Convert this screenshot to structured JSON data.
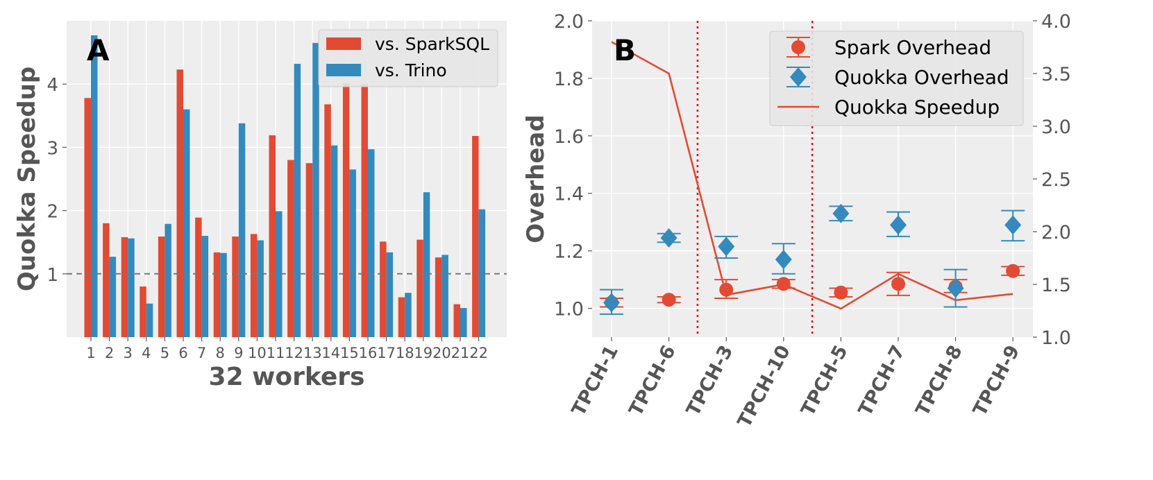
{
  "chart_data": [
    {
      "type": "bar",
      "panel_label": "A",
      "xlabel": "32 workers",
      "ylabel": "Quokka Speedup",
      "categories": [
        "1",
        "2",
        "3",
        "4",
        "5",
        "6",
        "7",
        "8",
        "9",
        "10",
        "11",
        "12",
        "13",
        "14",
        "15",
        "16",
        "17",
        "18",
        "19",
        "20",
        "21",
        "22"
      ],
      "series": [
        {
          "name": "vs. SparkSQL",
          "color": "#E24A33",
          "values": [
            3.78,
            1.8,
            1.58,
            0.8,
            1.59,
            4.23,
            1.89,
            1.34,
            1.59,
            1.63,
            3.19,
            2.8,
            2.75,
            3.68,
            4.01,
            4.0,
            1.51,
            0.63,
            1.54,
            1.26,
            0.52,
            3.18
          ]
        },
        {
          "name": "vs. Trino",
          "color": "#348ABD",
          "values": [
            4.77,
            1.27,
            1.56,
            0.53,
            1.79,
            3.6,
            1.6,
            1.33,
            3.38,
            1.53,
            1.99,
            4.32,
            4.65,
            3.03,
            2.65,
            2.97,
            1.34,
            0.7,
            2.29,
            1.3,
            0.46,
            2.02
          ]
        }
      ],
      "ylim": [
        0,
        5.0
      ],
      "yticks": [
        "1",
        "2",
        "3",
        "4"
      ],
      "reference_line": 1.0,
      "legend": "top-right",
      "grid": true
    },
    {
      "type": "scatter",
      "panel_label": "B",
      "ylabel": "Overhead",
      "categories": [
        "TPCH-1",
        "TPCH-6",
        "TPCH-3",
        "TPCH-10",
        "TPCH-5",
        "TPCH-7",
        "TPCH-8",
        "TPCH-9"
      ],
      "series": [
        {
          "name": "Spark Overhead",
          "marker": "circle",
          "color": "#E24A33",
          "axis": "left",
          "values": [
            1.02,
            1.03,
            1.065,
            1.085,
            1.055,
            1.085,
            1.075,
            1.13
          ],
          "error_low": [
            1.005,
            1.02,
            1.035,
            1.07,
            1.04,
            1.045,
            1.055,
            1.115
          ],
          "error_high": [
            1.035,
            1.04,
            1.1,
            1.1,
            1.07,
            1.125,
            1.1,
            1.145
          ]
        },
        {
          "name": "Quokka Overhead",
          "marker": "diamond",
          "color": "#348ABD",
          "axis": "left",
          "values": [
            1.02,
            1.245,
            1.215,
            1.17,
            1.33,
            1.29,
            1.07,
            1.29
          ],
          "error_low": [
            0.98,
            1.23,
            1.175,
            1.12,
            1.305,
            1.25,
            1.005,
            1.235
          ],
          "error_high": [
            1.065,
            1.26,
            1.25,
            1.225,
            1.355,
            1.335,
            1.135,
            1.34
          ]
        },
        {
          "name": "Quokka Speedup",
          "type": "line",
          "color": "#E24A33",
          "axis": "right",
          "values": [
            3.8,
            3.5,
            1.4,
            1.5,
            1.27,
            1.6,
            1.35,
            1.41
          ]
        }
      ],
      "ylim": [
        0.9,
        2.0
      ],
      "yticks": [
        "1.0",
        "1.2",
        "1.4",
        "1.6",
        "1.8",
        "2.0"
      ],
      "y2lim": [
        1.0,
        4.0
      ],
      "y2ticks": [
        "1.0",
        "1.5",
        "2.0",
        "2.5",
        "3.0",
        "3.5",
        "4.0"
      ],
      "vertical_dividers_after": [
        2,
        4
      ],
      "legend": "top-right",
      "grid": true
    }
  ]
}
